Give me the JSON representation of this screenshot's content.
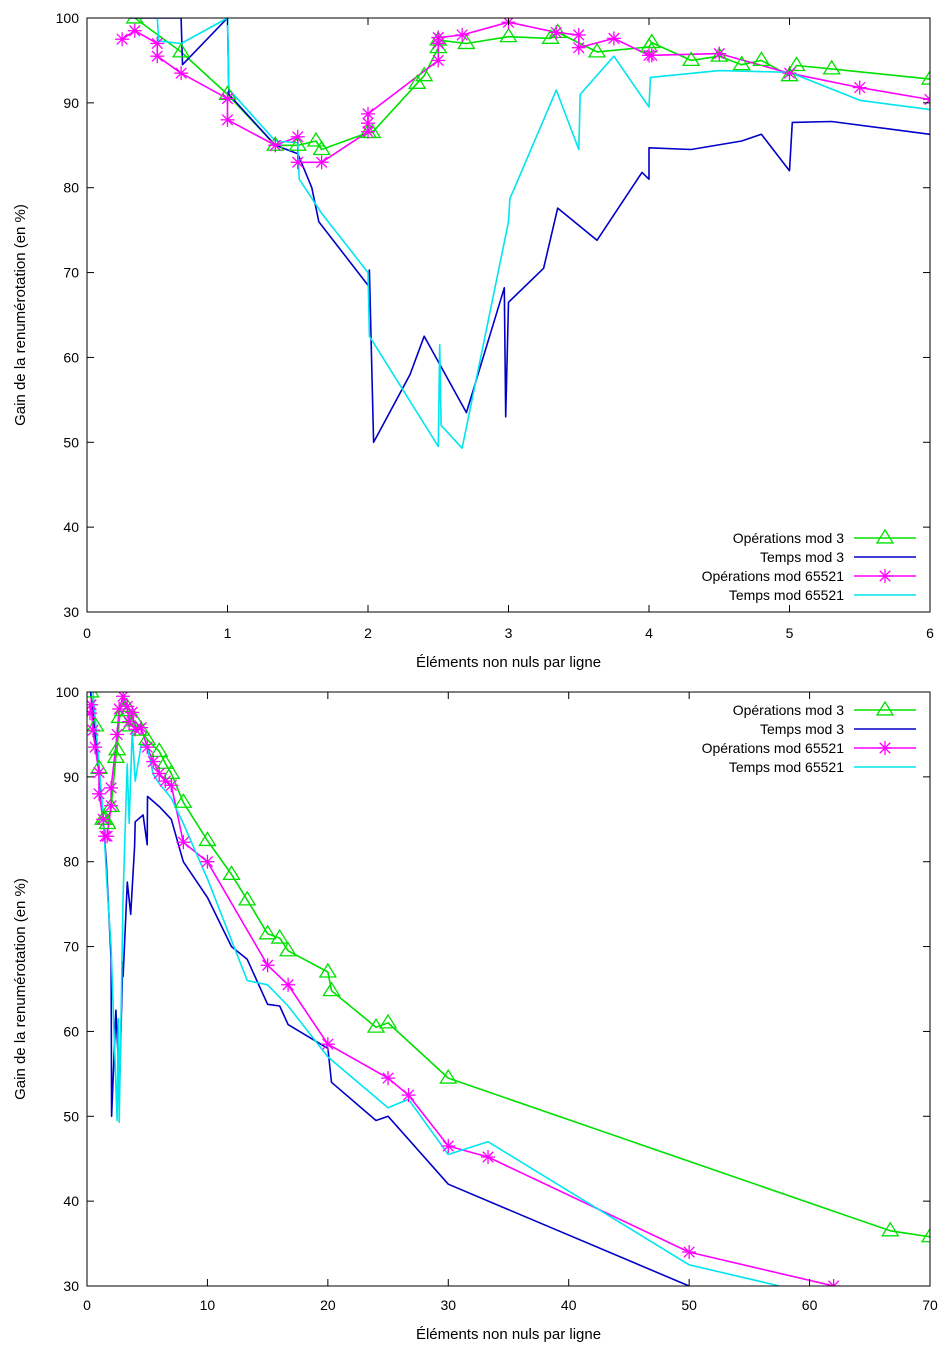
{
  "chart_data": [
    {
      "type": "line",
      "title": "",
      "xlabel": "Éléments non nuls par ligne",
      "ylabel": "Gain de la renumérotation (en %)",
      "xlim": [
        0,
        6
      ],
      "ylim": [
        30,
        100
      ],
      "xticks": [
        0,
        1,
        2,
        3,
        4,
        5,
        6
      ],
      "yticks": [
        30,
        40,
        50,
        60,
        70,
        80,
        90,
        100
      ],
      "grid": false,
      "legend_position": "bottom-right",
      "series": [
        {
          "name": "Opérations mod 3",
          "color": "#00e000",
          "marker": "triangle",
          "x": [
            0.34,
            0.67,
            1.0,
            1.34,
            1.5,
            1.63,
            1.67,
            2.0,
            2.03,
            2.35,
            2.4,
            2.5,
            2.5,
            2.7,
            3.0,
            3.3,
            3.35,
            3.63,
            4.0,
            4.02,
            4.3,
            4.5,
            4.66,
            4.8,
            5.0,
            5.05,
            5.3,
            6.0
          ],
          "y": [
            100,
            96,
            91,
            85,
            85,
            85.5,
            84.5,
            86.5,
            86.5,
            92.3,
            93.2,
            96.5,
            97.4,
            97,
            97.8,
            97.6,
            98.3,
            96,
            96.6,
            97.1,
            95,
            95.5,
            94.5,
            95,
            93.2,
            94.4,
            94,
            92.8
          ]
        },
        {
          "name": "Temps mod 3",
          "color": "#0000c8",
          "x": [
            0.3,
            0.5,
            0.67,
            0.68,
            1.0,
            1.01,
            1.34,
            1.5,
            1.6,
            1.65,
            2.0,
            2.01,
            2.04,
            2.3,
            2.4,
            2.5,
            2.7,
            2.97,
            2.98,
            3.0,
            3.25,
            3.35,
            3.63,
            3.95,
            4.0,
            4.0,
            4.3,
            4.66,
            4.8,
            5.0,
            5.02,
            5.3,
            6.0
          ],
          "y": [
            100,
            100,
            100,
            94.5,
            100,
            91,
            85,
            84,
            80,
            76,
            68.5,
            70.3,
            50,
            58,
            62.5,
            59.5,
            53.5,
            68.2,
            53,
            66.5,
            70.5,
            77.6,
            73.8,
            81.8,
            81,
            84.7,
            84.5,
            85.5,
            86.3,
            82,
            87.7,
            87.8,
            86.3
          ]
        },
        {
          "name": "Opérations mod 65521",
          "color": "#ff00ff",
          "marker": "star",
          "x": [
            0.25,
            0.34,
            0.5,
            0.5,
            0.67,
            1.0,
            1.0,
            1.34,
            1.5,
            1.5,
            1.67,
            2.0,
            2.0,
            2.0,
            2.5,
            2.5,
            2.5,
            2.67,
            3.0,
            3.34,
            3.5,
            3.5,
            3.75,
            4.0,
            4.02,
            4.5,
            5.0,
            5.5,
            6.0
          ],
          "y": [
            97.5,
            98.5,
            97,
            95.5,
            93.5,
            90.5,
            88,
            85,
            86,
            83,
            83,
            86.6,
            87.6,
            88.7,
            95,
            97,
            97.7,
            98,
            99.5,
            98.3,
            98,
            96.5,
            97.6,
            95.6,
            95.6,
            95.8,
            93.5,
            91.8,
            90.4
          ]
        },
        {
          "name": "Temps mod 65521",
          "color": "#00e5ee",
          "x": [
            0.5,
            0.51,
            0.67,
            1.0,
            1.0,
            1.01,
            1.34,
            1.5,
            1.51,
            1.67,
            2.0,
            2.01,
            2.5,
            2.51,
            2.52,
            2.67,
            3.0,
            3.01,
            3.34,
            3.5,
            3.51,
            3.75,
            4.0,
            4.01,
            4.5,
            5.0,
            5.5,
            6.0
          ],
          "y": [
            100,
            97.3,
            97,
            100,
            100,
            91.6,
            85.5,
            85.3,
            81,
            77,
            70,
            62.5,
            49.5,
            61.5,
            52,
            49.3,
            76,
            78.7,
            91.5,
            84.5,
            91,
            95.5,
            89.5,
            93,
            93.8,
            93.6,
            90.3,
            89.2
          ]
        }
      ]
    },
    {
      "type": "line",
      "title": "",
      "xlabel": "Éléments non nuls par ligne",
      "ylabel": "Gain de la renumérotation (en %)",
      "xlim": [
        0,
        70
      ],
      "ylim": [
        30,
        100
      ],
      "xticks": [
        0,
        10,
        20,
        30,
        40,
        50,
        60,
        70
      ],
      "yticks": [
        30,
        40,
        50,
        60,
        70,
        80,
        90,
        100
      ],
      "grid": false,
      "legend_position": "top-right",
      "series": [
        {
          "name": "Opérations mod 3",
          "color": "#00e000",
          "marker": "triangle",
          "x": [
            0.3,
            0.7,
            1.0,
            1.34,
            1.5,
            1.7,
            2.0,
            2.4,
            2.5,
            2.7,
            3.0,
            3.3,
            3.6,
            4.0,
            4.5,
            5.0,
            6.0,
            6.5,
            7.0,
            8.0,
            10.0,
            12.0,
            13.3,
            15.0,
            16.0,
            16.7,
            20.0,
            20.3,
            24.0,
            25.0,
            30.0,
            66.7,
            70.0
          ],
          "y": [
            100,
            96,
            91,
            85,
            85,
            84.5,
            86.5,
            92.3,
            93.2,
            97,
            97.8,
            98.3,
            96,
            96.6,
            95.5,
            94.4,
            93,
            91.6,
            90.4,
            87,
            82.5,
            78.5,
            75.5,
            71.5,
            71,
            69.5,
            67,
            64.8,
            60.5,
            61,
            54.5,
            36.5,
            35.8
          ]
        },
        {
          "name": "Temps mod 3",
          "color": "#0000c8",
          "x": [
            0.3,
            0.7,
            1.0,
            1.34,
            1.6,
            2.0,
            2.04,
            2.4,
            2.5,
            2.7,
            2.97,
            3.0,
            3.35,
            3.63,
            3.95,
            4.0,
            4.66,
            5.0,
            5.02,
            6.0,
            7.0,
            8.0,
            10.0,
            12.0,
            13.3,
            15.0,
            16.0,
            16.7,
            20.0,
            20.3,
            24.0,
            25.0,
            30.0,
            50.0
          ],
          "y": [
            100,
            94.5,
            91,
            85,
            80,
            68.5,
            50,
            62.5,
            59.5,
            53.5,
            68.2,
            66.5,
            77.6,
            73.8,
            81.8,
            84.7,
            85.5,
            82,
            87.7,
            86.5,
            85,
            80,
            75.8,
            70,
            68.5,
            63.2,
            63,
            60.8,
            58,
            54,
            49.5,
            50,
            42,
            30
          ]
        },
        {
          "name": "Opérations mod 65521",
          "color": "#ff00ff",
          "marker": "star",
          "x": [
            0.25,
            0.34,
            0.5,
            0.67,
            1.0,
            1.0,
            1.34,
            1.5,
            1.67,
            2.0,
            2.0,
            2.5,
            2.67,
            3.0,
            3.34,
            3.5,
            3.75,
            4.0,
            4.5,
            5.0,
            5.5,
            6.0,
            6.5,
            7.0,
            8.0,
            10.0,
            15.0,
            16.7,
            20.0,
            25.0,
            26.7,
            30.0,
            33.3,
            50.0,
            62.0
          ],
          "y": [
            97.5,
            98.5,
            95.5,
            93.5,
            90.5,
            88,
            85,
            83,
            83,
            86.6,
            88.7,
            95,
            98,
            99.5,
            98.3,
            96.5,
            97.6,
            95.6,
            95.8,
            93.5,
            91.8,
            90.4,
            89.5,
            89,
            82.3,
            80,
            67.8,
            65.5,
            58.5,
            54.5,
            52.5,
            46.5,
            45.2,
            34,
            30
          ]
        },
        {
          "name": "Temps mod 65521",
          "color": "#00e5ee",
          "x": [
            0.5,
            0.67,
            1.0,
            1.34,
            1.67,
            2.0,
            2.5,
            2.6,
            2.67,
            3.0,
            3.34,
            3.5,
            3.75,
            4.0,
            4.5,
            5.0,
            5.5,
            6.0,
            7.0,
            8.0,
            10.0,
            13.3,
            15.0,
            16.7,
            20.0,
            25.0,
            26.7,
            30.0,
            33.3,
            50.0,
            57.5
          ],
          "y": [
            100,
            97,
            91.6,
            85.5,
            77,
            70,
            49.5,
            61.5,
            49.3,
            76,
            91.5,
            84.5,
            95.5,
            89.5,
            93.8,
            93.6,
            90.3,
            89.2,
            87.5,
            84.5,
            78,
            66,
            65.5,
            63,
            57,
            51,
            52,
            45.5,
            47,
            32.5,
            30
          ]
        }
      ]
    }
  ]
}
